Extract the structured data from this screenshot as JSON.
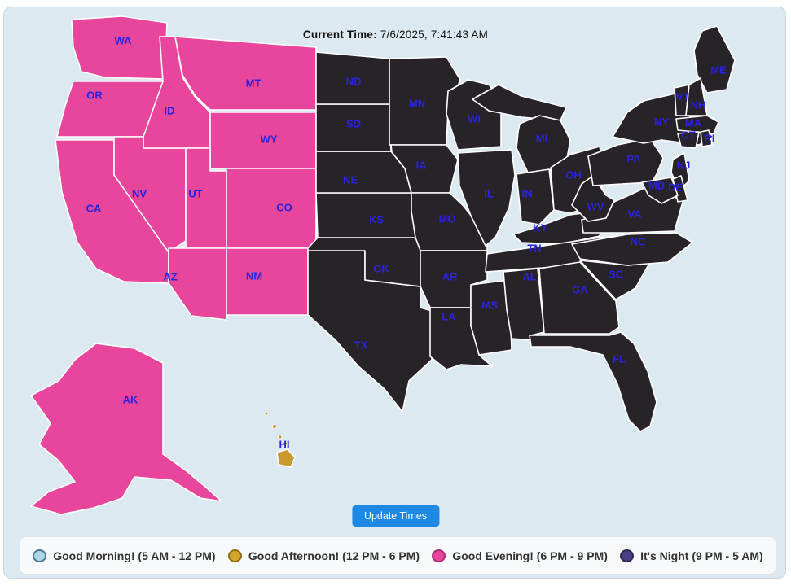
{
  "title": {
    "label": "Current Time:",
    "value": "7/6/2025, 7:41:43 AM"
  },
  "update_button": {
    "label": "Update Times"
  },
  "legend": {
    "items": [
      {
        "id": "morning",
        "label": "Good Morning! (5 AM - 12 PM)",
        "color": "#a9d6e8",
        "border": "#4d768e"
      },
      {
        "id": "afternoon",
        "label": "Good Afternoon! (12 PM - 6 PM)",
        "color": "#d6a52b",
        "border": "#8f6c16"
      },
      {
        "id": "evening",
        "label": "Good Evening! (6 PM - 9 PM)",
        "color": "#e8469e",
        "border": "#a42f70"
      },
      {
        "id": "night",
        "label": "It's Night (9 PM - 5 AM)",
        "color": "#4a3f82",
        "border": "#2e2752"
      }
    ]
  },
  "map": {
    "background": "#dde9f0",
    "border_color": "#ffffff",
    "label_color": "#2a22dd",
    "period_colors": {
      "morning": "#a9d6e8",
      "afternoon": "#c9992e",
      "evening": "#e8459c",
      "night": "#282329"
    },
    "states": [
      {
        "abbr": "WA",
        "period": "evening"
      },
      {
        "abbr": "OR",
        "period": "evening"
      },
      {
        "abbr": "CA",
        "period": "evening"
      },
      {
        "abbr": "NV",
        "period": "evening"
      },
      {
        "abbr": "ID",
        "period": "evening"
      },
      {
        "abbr": "MT",
        "period": "evening"
      },
      {
        "abbr": "WY",
        "period": "evening"
      },
      {
        "abbr": "UT",
        "period": "evening"
      },
      {
        "abbr": "CO",
        "period": "evening"
      },
      {
        "abbr": "AZ",
        "period": "evening"
      },
      {
        "abbr": "NM",
        "period": "evening"
      },
      {
        "abbr": "AK",
        "period": "evening"
      },
      {
        "abbr": "HI",
        "period": "afternoon"
      },
      {
        "abbr": "TX",
        "period": "night"
      },
      {
        "abbr": "OK",
        "period": "night"
      },
      {
        "abbr": "KS",
        "period": "night"
      },
      {
        "abbr": "NE",
        "period": "night"
      },
      {
        "abbr": "SD",
        "period": "night"
      },
      {
        "abbr": "ND",
        "period": "night"
      },
      {
        "abbr": "MN",
        "period": "night"
      },
      {
        "abbr": "IA",
        "period": "night"
      },
      {
        "abbr": "MO",
        "period": "night"
      },
      {
        "abbr": "AR",
        "period": "night"
      },
      {
        "abbr": "LA",
        "period": "night"
      },
      {
        "abbr": "MS",
        "period": "night"
      },
      {
        "abbr": "WI",
        "period": "night"
      },
      {
        "abbr": "IL",
        "period": "night"
      },
      {
        "abbr": "MI",
        "period": "night"
      },
      {
        "abbr": "IN",
        "period": "night"
      },
      {
        "abbr": "OH",
        "period": "night"
      },
      {
        "abbr": "KY",
        "period": "night"
      },
      {
        "abbr": "TN",
        "period": "night"
      },
      {
        "abbr": "AL",
        "period": "night"
      },
      {
        "abbr": "GA",
        "period": "night"
      },
      {
        "abbr": "FL",
        "period": "night"
      },
      {
        "abbr": "SC",
        "period": "night"
      },
      {
        "abbr": "NC",
        "period": "night"
      },
      {
        "abbr": "VA",
        "period": "night"
      },
      {
        "abbr": "WV",
        "period": "night"
      },
      {
        "abbr": "PA",
        "period": "night"
      },
      {
        "abbr": "NY",
        "period": "night"
      },
      {
        "abbr": "ME",
        "period": "night"
      },
      {
        "abbr": "VT",
        "period": "night"
      },
      {
        "abbr": "NH",
        "period": "night"
      },
      {
        "abbr": "MA",
        "period": "night"
      },
      {
        "abbr": "CT",
        "period": "night"
      },
      {
        "abbr": "RI",
        "period": "night"
      },
      {
        "abbr": "NJ",
        "period": "night"
      },
      {
        "abbr": "DE",
        "period": "night"
      },
      {
        "abbr": "MD",
        "period": "night"
      }
    ]
  }
}
